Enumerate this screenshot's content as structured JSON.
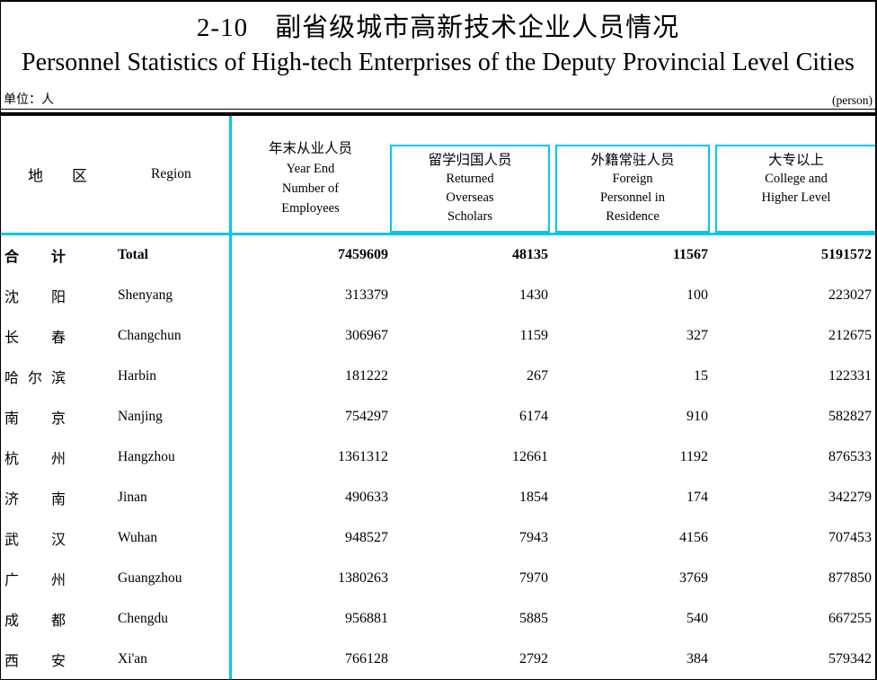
{
  "page": {
    "title_zh": "2-10　副省级城市高新技术企业人员情况",
    "title_en": "Personnel Statistics of High-tech Enterprises of the Deputy Provincial Level Cities",
    "unit_zh": "单位：人",
    "unit_en": "(person)"
  },
  "colors": {
    "accent_cyan": "#00C6F0",
    "border_black": "#000000"
  },
  "table": {
    "region_header": {
      "zh": "地区",
      "en": "Region"
    },
    "columns": [
      {
        "zh": "年末从业人员",
        "en1": "Year End",
        "en2": "Number of",
        "en3": "Employees"
      },
      {
        "zh": "留学归国人员",
        "en1": "Returned",
        "en2": "Overseas",
        "en3": "Scholars"
      },
      {
        "zh": "外籍常驻人员",
        "en1": "Foreign",
        "en2": "Personnel in",
        "en3": "Residence"
      },
      {
        "zh": "大专以上",
        "en1": "College and",
        "en2": "Higher Level"
      }
    ],
    "rows": [
      {
        "zh": "合计",
        "en": "Total",
        "bold": true,
        "values": [
          "7459609",
          "48135",
          "11567",
          "5191572"
        ]
      },
      {
        "zh": "沈阳",
        "en": "Shenyang",
        "bold": false,
        "values": [
          "313379",
          "1430",
          "100",
          "223027"
        ]
      },
      {
        "zh": "长春",
        "en": "Changchun",
        "bold": false,
        "values": [
          "306967",
          "1159",
          "327",
          "212675"
        ]
      },
      {
        "zh": "哈尔滨",
        "en": "Harbin",
        "bold": false,
        "values": [
          "181222",
          "267",
          "15",
          "122331"
        ]
      },
      {
        "zh": "南京",
        "en": "Nanjing",
        "bold": false,
        "values": [
          "754297",
          "6174",
          "910",
          "582827"
        ]
      },
      {
        "zh": "杭州",
        "en": "Hangzhou",
        "bold": false,
        "values": [
          "1361312",
          "12661",
          "1192",
          "876533"
        ]
      },
      {
        "zh": "济南",
        "en": "Jinan",
        "bold": false,
        "values": [
          "490633",
          "1854",
          "174",
          "342279"
        ]
      },
      {
        "zh": "武汉",
        "en": "Wuhan",
        "bold": false,
        "values": [
          "948527",
          "7943",
          "4156",
          "707453"
        ]
      },
      {
        "zh": "广州",
        "en": "Guangzhou",
        "bold": false,
        "values": [
          "1380263",
          "7970",
          "3769",
          "877850"
        ]
      },
      {
        "zh": "成都",
        "en": "Chengdu",
        "bold": false,
        "values": [
          "956881",
          "5885",
          "540",
          "667255"
        ]
      },
      {
        "zh": "西安",
        "en": "Xi'an",
        "bold": false,
        "values": [
          "766128",
          "2792",
          "384",
          "579342"
        ]
      }
    ]
  }
}
